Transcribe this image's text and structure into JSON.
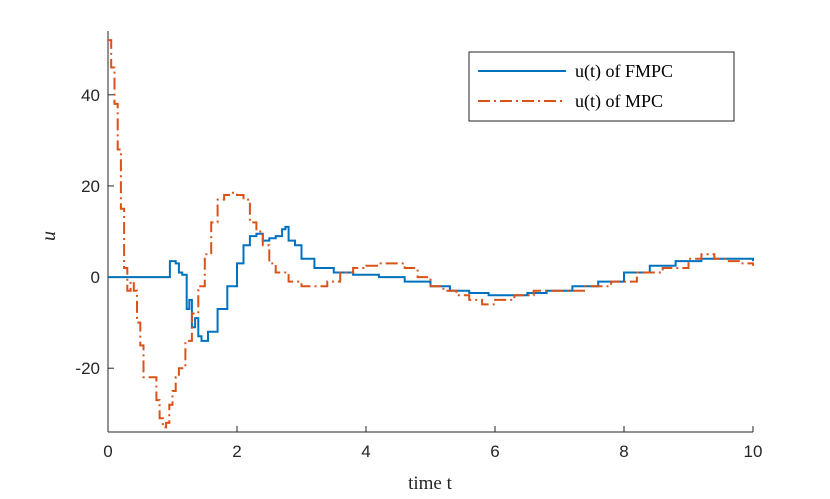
{
  "chart_data": {
    "type": "line",
    "title": "",
    "xlabel": "time t",
    "ylabel": "u",
    "xlim": [
      0,
      10
    ],
    "ylim": [
      -34,
      54
    ],
    "xticks": [
      0,
      2,
      4,
      6,
      8,
      10
    ],
    "yticks": [
      -20,
      0,
      20,
      40
    ],
    "xtick_labels": [
      "0",
      "2",
      "4",
      "6",
      "8",
      "10"
    ],
    "ytick_labels": [
      "-20",
      "0",
      "20",
      "40"
    ],
    "grid": false,
    "legend_position": "top-right",
    "series": [
      {
        "name": "u(t) of FMPC",
        "color": "#0072BD",
        "style": "solid",
        "x": [
          0,
          0.95,
          0.96,
          1.05,
          1.1,
          1.15,
          1.22,
          1.26,
          1.3,
          1.35,
          1.4,
          1.45,
          1.55,
          1.7,
          1.85,
          2.0,
          2.1,
          2.2,
          2.3,
          2.4,
          2.5,
          2.6,
          2.7,
          2.75,
          2.8,
          2.9,
          3.0,
          3.2,
          3.5,
          3.8,
          4.2,
          4.6,
          5.0,
          5.3,
          5.6,
          5.9,
          6.2,
          6.5,
          6.8,
          7.2,
          7.6,
          8.0,
          8.4,
          8.8,
          9.2,
          9.6,
          10.0
        ],
        "y": [
          0,
          0,
          3.5,
          3.0,
          1.0,
          0.5,
          -7,
          -5,
          -11,
          -9,
          -13,
          -14,
          -12,
          -7,
          -2,
          3,
          7,
          9,
          9.5,
          8,
          8.5,
          9,
          10.5,
          11,
          8,
          7,
          4,
          2,
          1,
          0.5,
          0,
          -1,
          -2,
          -3,
          -3.5,
          -4,
          -4,
          -3.5,
          -3,
          -2,
          -1,
          1,
          2.5,
          3.5,
          4,
          4,
          3.5
        ]
      },
      {
        "name": "u(t) of MPC",
        "color": "#D95319",
        "style": "dashdot",
        "x": [
          0,
          0.05,
          0.1,
          0.15,
          0.2,
          0.25,
          0.3,
          0.35,
          0.4,
          0.45,
          0.5,
          0.55,
          0.6,
          0.65,
          0.7,
          0.75,
          0.8,
          0.85,
          0.9,
          0.95,
          1.0,
          1.05,
          1.1,
          1.2,
          1.3,
          1.4,
          1.5,
          1.6,
          1.7,
          1.8,
          1.9,
          2.0,
          2.1,
          2.2,
          2.3,
          2.4,
          2.5,
          2.6,
          2.8,
          3.0,
          3.2,
          3.4,
          3.6,
          3.8,
          4.0,
          4.2,
          4.4,
          4.6,
          4.8,
          5.0,
          5.2,
          5.4,
          5.6,
          5.8,
          6.0,
          6.3,
          6.6,
          7.0,
          7.4,
          7.8,
          8.2,
          8.6,
          9.0,
          9.2,
          9.4,
          9.6,
          9.8,
          10.0
        ],
        "y": [
          52,
          46,
          38,
          28,
          15,
          2,
          -3,
          -1,
          -3,
          -10,
          -15,
          -22,
          -22,
          -22,
          -22,
          -27,
          -31,
          -33,
          -32,
          -28,
          -25,
          -22,
          -20,
          -14,
          -8,
          -2,
          5,
          12,
          17,
          18,
          18.5,
          18,
          17,
          12,
          10,
          7,
          3,
          1,
          -1,
          -2,
          -2,
          -1,
          1,
          2,
          2.5,
          3,
          3,
          2,
          0,
          -2,
          -3,
          -4,
          -5,
          -6,
          -5,
          -4,
          -3,
          -3,
          -2,
          -1,
          1,
          2,
          4,
          5,
          4,
          3.5,
          3,
          2.5
        ]
      }
    ]
  }
}
